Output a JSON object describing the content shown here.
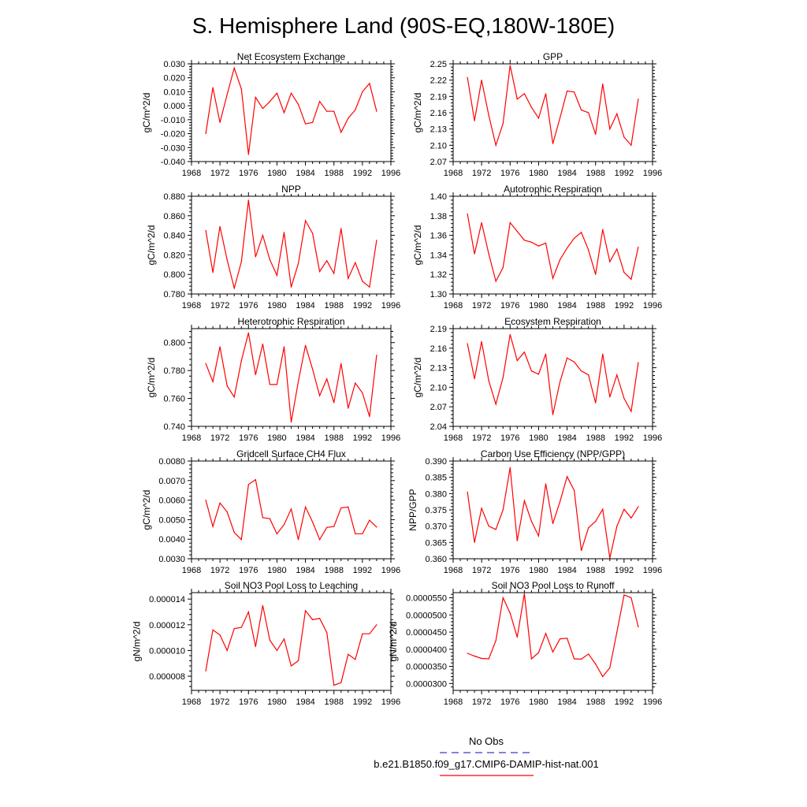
{
  "figure": {
    "title": "S. Hemisphere Land (90S-EQ,180W-180E)",
    "legend": [
      {
        "label": "No Obs",
        "color": "#3a3acd",
        "dash": "dashed"
      },
      {
        "label": "b.e21.B1850.f09_g17.CMIP6-DAMIP-hist-nat.001",
        "color": "#ff0000",
        "dash": "solid"
      }
    ]
  },
  "chart_data": [
    {
      "type": "line",
      "title": "Net Ecosystem Exchange",
      "ylabel": "gC/m^2/d",
      "xlim": [
        1968,
        1996
      ],
      "xticks": [
        "1968",
        "1972",
        "1976",
        "1980",
        "1984",
        "1988",
        "1992",
        "1996"
      ],
      "ylim": [
        -0.04,
        0.03
      ],
      "yticks": [
        "-0.040",
        "-0.030",
        "-0.020",
        "-0.010",
        "0.000",
        "0.010",
        "0.020",
        "0.030"
      ],
      "line_color": "#ff0000",
      "x": [
        1970,
        1971,
        1972,
        1973,
        1974,
        1975,
        1976,
        1977,
        1978,
        1979,
        1980,
        1981,
        1982,
        1983,
        1984,
        1985,
        1986,
        1987,
        1988,
        1989,
        1990,
        1991,
        1992,
        1993,
        1994
      ],
      "values": [
        -0.02,
        0.013,
        -0.012,
        0.008,
        0.027,
        0.012,
        -0.035,
        0.006,
        -0.002,
        0.003,
        0.009,
        -0.005,
        0.009,
        0.001,
        -0.013,
        -0.012,
        0.003,
        -0.004,
        -0.004,
        -0.019,
        -0.009,
        -0.003,
        0.01,
        0.016,
        -0.004
      ]
    },
    {
      "type": "line",
      "title": "GPP",
      "ylabel": "gC/m^2/d",
      "xlim": [
        1968,
        1996
      ],
      "xticks": [
        "1968",
        "1972",
        "1976",
        "1980",
        "1984",
        "1988",
        "1992",
        "1996"
      ],
      "ylim": [
        2.07,
        2.25
      ],
      "yticks": [
        "2.07",
        "2.10",
        "2.13",
        "2.16",
        "2.19",
        "2.22",
        "2.25"
      ],
      "line_color": "#ff0000",
      "x": [
        1970,
        1971,
        1972,
        1973,
        1974,
        1975,
        1976,
        1977,
        1978,
        1979,
        1980,
        1981,
        1982,
        1983,
        1984,
        1985,
        1986,
        1987,
        1988,
        1989,
        1990,
        1991,
        1992,
        1993,
        1994
      ],
      "values": [
        2.225,
        2.145,
        2.22,
        2.155,
        2.1,
        2.14,
        2.247,
        2.185,
        2.195,
        2.17,
        2.15,
        2.195,
        2.103,
        2.15,
        2.2,
        2.198,
        2.165,
        2.16,
        2.12,
        2.213,
        2.13,
        2.158,
        2.115,
        2.1,
        2.185
      ]
    },
    {
      "type": "line",
      "title": "NPP",
      "ylabel": "gC/m^2/d",
      "xlim": [
        1968,
        1996
      ],
      "xticks": [
        "1968",
        "1972",
        "1976",
        "1980",
        "1984",
        "1988",
        "1992",
        "1996"
      ],
      "ylim": [
        0.78,
        0.88
      ],
      "yticks": [
        "0.780",
        "0.800",
        "0.820",
        "0.840",
        "0.860",
        "0.880"
      ],
      "line_color": "#ff0000",
      "x": [
        1970,
        1971,
        1972,
        1973,
        1974,
        1975,
        1976,
        1977,
        1978,
        1979,
        1980,
        1981,
        1982,
        1983,
        1984,
        1985,
        1986,
        1987,
        1988,
        1989,
        1990,
        1991,
        1992,
        1993,
        1994
      ],
      "values": [
        0.845,
        0.802,
        0.849,
        0.815,
        0.786,
        0.813,
        0.876,
        0.818,
        0.84,
        0.815,
        0.799,
        0.843,
        0.787,
        0.811,
        0.855,
        0.842,
        0.803,
        0.814,
        0.801,
        0.847,
        0.796,
        0.812,
        0.793,
        0.787,
        0.835
      ]
    },
    {
      "type": "line",
      "title": "Autotrophic Respiration",
      "ylabel": "gC/m^2/d",
      "xlim": [
        1968,
        1996
      ],
      "xticks": [
        "1968",
        "1972",
        "1976",
        "1980",
        "1984",
        "1988",
        "1992",
        "1996"
      ],
      "ylim": [
        1.3,
        1.4
      ],
      "yticks": [
        "1.30",
        "1.32",
        "1.34",
        "1.36",
        "1.38",
        "1.40"
      ],
      "line_color": "#ff0000",
      "x": [
        1970,
        1971,
        1972,
        1973,
        1974,
        1975,
        1976,
        1977,
        1978,
        1979,
        1980,
        1981,
        1982,
        1983,
        1984,
        1985,
        1986,
        1987,
        1988,
        1989,
        1990,
        1991,
        1992,
        1993,
        1994
      ],
      "values": [
        1.382,
        1.341,
        1.373,
        1.341,
        1.313,
        1.327,
        1.373,
        1.364,
        1.355,
        1.353,
        1.349,
        1.352,
        1.316,
        1.335,
        1.347,
        1.357,
        1.363,
        1.345,
        1.32,
        1.366,
        1.333,
        1.346,
        1.322,
        1.315,
        1.348
      ]
    },
    {
      "type": "line",
      "title": "Heterotrophic Respiration",
      "ylabel": "gC/m^2/d",
      "xlim": [
        1968,
        1996
      ],
      "xticks": [
        "1968",
        "1972",
        "1976",
        "1980",
        "1984",
        "1988",
        "1992",
        "1996"
      ],
      "ylim": [
        0.74,
        0.81
      ],
      "yticks": [
        "0.740",
        "0.760",
        "0.780",
        "0.800"
      ],
      "line_color": "#ff0000",
      "x": [
        1970,
        1971,
        1972,
        1973,
        1974,
        1975,
        1976,
        1977,
        1978,
        1979,
        1980,
        1981,
        1982,
        1983,
        1984,
        1985,
        1986,
        1987,
        1988,
        1989,
        1990,
        1991,
        1992,
        1993,
        1994
      ],
      "values": [
        0.785,
        0.772,
        0.797,
        0.769,
        0.761,
        0.787,
        0.807,
        0.777,
        0.799,
        0.77,
        0.77,
        0.797,
        0.743,
        0.772,
        0.798,
        0.781,
        0.762,
        0.774,
        0.757,
        0.785,
        0.753,
        0.771,
        0.764,
        0.747,
        0.791
      ]
    },
    {
      "type": "line",
      "title": "Ecosystem Respiration",
      "ylabel": "gC/m^2/d",
      "xlim": [
        1968,
        1996
      ],
      "xticks": [
        "1968",
        "1972",
        "1976",
        "1980",
        "1984",
        "1988",
        "1992",
        "1996"
      ],
      "ylim": [
        2.04,
        2.19
      ],
      "yticks": [
        "2.04",
        "2.07",
        "2.10",
        "2.13",
        "2.16",
        "2.19"
      ],
      "line_color": "#ff0000",
      "x": [
        1970,
        1971,
        1972,
        1973,
        1974,
        1975,
        1976,
        1977,
        1978,
        1979,
        1980,
        1981,
        1982,
        1983,
        1984,
        1985,
        1986,
        1987,
        1988,
        1989,
        1990,
        1991,
        1992,
        1993,
        1994
      ],
      "values": [
        2.167,
        2.113,
        2.17,
        2.11,
        2.074,
        2.115,
        2.181,
        2.141,
        2.154,
        2.125,
        2.12,
        2.151,
        2.058,
        2.108,
        2.145,
        2.139,
        2.125,
        2.119,
        2.076,
        2.151,
        2.085,
        2.119,
        2.083,
        2.063,
        2.138
      ]
    },
    {
      "type": "line",
      "title": "Gridcell Surface CH4 Flux",
      "ylabel": "gC/m^2/d",
      "xlim": [
        1968,
        1996
      ],
      "xticks": [
        "1968",
        "1972",
        "1976",
        "1980",
        "1984",
        "1988",
        "1992",
        "1996"
      ],
      "ylim": [
        0.003,
        0.008
      ],
      "yticks": [
        "0.0030",
        "0.0040",
        "0.0050",
        "0.0060",
        "0.0070",
        "0.0080"
      ],
      "line_color": "#ff0000",
      "x": [
        1970,
        1971,
        1972,
        1973,
        1974,
        1975,
        1976,
        1977,
        1978,
        1979,
        1980,
        1981,
        1982,
        1983,
        1984,
        1985,
        1986,
        1987,
        1988,
        1989,
        1990,
        1991,
        1992,
        1993,
        1994
      ],
      "values": [
        0.006,
        0.00465,
        0.00585,
        0.0054,
        0.00435,
        0.00398,
        0.0068,
        0.00705,
        0.0051,
        0.00505,
        0.00427,
        0.00475,
        0.00555,
        0.00398,
        0.00565,
        0.00488,
        0.00398,
        0.0046,
        0.00465,
        0.0056,
        0.00565,
        0.00428,
        0.00428,
        0.00497,
        0.00462
      ]
    },
    {
      "type": "line",
      "title": "Carbon Use Efficiency (NPP/GPP)",
      "ylabel": "NPP/GPP",
      "xlim": [
        1968,
        1996
      ],
      "xticks": [
        "1968",
        "1972",
        "1976",
        "1980",
        "1984",
        "1988",
        "1992",
        "1996"
      ],
      "ylim": [
        0.36,
        0.39
      ],
      "yticks": [
        "0.360",
        "0.365",
        "0.370",
        "0.375",
        "0.380",
        "0.385",
        "0.390"
      ],
      "line_color": "#ff0000",
      "x": [
        1970,
        1971,
        1972,
        1973,
        1974,
        1975,
        1976,
        1977,
        1978,
        1979,
        1980,
        1981,
        1982,
        1983,
        1984,
        1985,
        1986,
        1987,
        1988,
        1989,
        1990,
        1991,
        1992,
        1993,
        1994
      ],
      "values": [
        0.3805,
        0.365,
        0.3755,
        0.37,
        0.369,
        0.375,
        0.388,
        0.3655,
        0.3778,
        0.3715,
        0.367,
        0.383,
        0.3708,
        0.3775,
        0.3852,
        0.381,
        0.3625,
        0.3695,
        0.3715,
        0.3752,
        0.3602,
        0.37,
        0.3752,
        0.3725,
        0.376
      ]
    },
    {
      "type": "line",
      "title": "Soil NO3 Pool Loss to Leaching",
      "ylabel": "gN/m^2/d",
      "xlim": [
        1968,
        1996
      ],
      "xticks": [
        "1968",
        "1972",
        "1976",
        "1980",
        "1984",
        "1988",
        "1992",
        "1996"
      ],
      "ylim": [
        6.9e-06,
        1.45e-05
      ],
      "yticks": [
        "0.000008",
        "0.000010",
        "0.000012",
        "0.000014"
      ],
      "line_color": "#ff0000",
      "x": [
        1970,
        1971,
        1972,
        1973,
        1974,
        1975,
        1976,
        1977,
        1978,
        1979,
        1980,
        1981,
        1982,
        1983,
        1984,
        1985,
        1986,
        1987,
        1988,
        1989,
        1990,
        1991,
        1992,
        1993,
        1994
      ],
      "values": [
        8.4e-06,
        1.16e-05,
        1.12e-05,
        1e-05,
        1.17e-05,
        1.18e-05,
        1.3e-05,
        1.03e-05,
        1.35e-05,
        1.08e-05,
        1e-05,
        1.09e-05,
        8.8e-06,
        9.2e-06,
        1.31e-05,
        1.24e-05,
        1.25e-05,
        1.14e-05,
        7.3e-06,
        7.5e-06,
        9.7e-06,
        9.3e-06,
        1.13e-05,
        1.13e-05,
        1.2e-05
      ]
    },
    {
      "type": "line",
      "title": "Soil NO3 Pool Loss to Runoff",
      "ylabel": "gN/m^2/d",
      "xlim": [
        1968,
        1996
      ],
      "xticks": [
        "1968",
        "1972",
        "1976",
        "1980",
        "1984",
        "1988",
        "1992",
        "1996"
      ],
      "ylim": [
        2.8e-05,
        5.65e-05
      ],
      "yticks": [
        "0.0000300",
        "0.0000350",
        "0.0000400",
        "0.0000450",
        "0.0000500",
        "0.0000550"
      ],
      "line_color": "#ff0000",
      "x": [
        1970,
        1971,
        1972,
        1973,
        1974,
        1975,
        1976,
        1977,
        1978,
        1979,
        1980,
        1981,
        1982,
        1983,
        1984,
        1985,
        1986,
        1987,
        1988,
        1989,
        1990,
        1991,
        1992,
        1993,
        1994
      ],
      "values": [
        3.88e-05,
        3.8e-05,
        3.73e-05,
        3.72e-05,
        4.25e-05,
        5.5e-05,
        5.05e-05,
        4.35e-05,
        5.62e-05,
        3.72e-05,
        3.9e-05,
        4.46e-05,
        3.92e-05,
        4.3e-05,
        4.32e-05,
        3.72e-05,
        3.71e-05,
        3.86e-05,
        3.57e-05,
        3.2e-05,
        3.46e-05,
        4.5e-05,
        5.58e-05,
        5.5e-05,
        4.65e-05
      ]
    }
  ]
}
